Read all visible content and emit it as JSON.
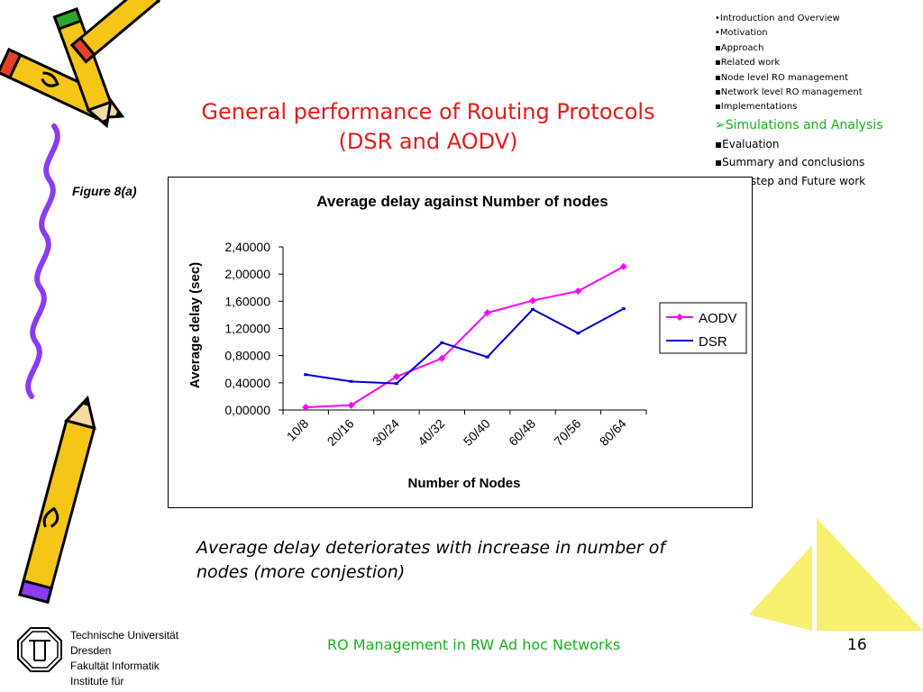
{
  "nav": {
    "items": [
      {
        "label": "•Introduction and Overview",
        "style": "small"
      },
      {
        "label": "•Motivation",
        "style": "small"
      },
      {
        "label": "▪Approach",
        "style": "small"
      },
      {
        "label": "▪Related work",
        "style": "small"
      },
      {
        "label": "▪Node level RO management",
        "style": "small"
      },
      {
        "label": "▪Network level RO management",
        "style": "small"
      },
      {
        "label": "▪Implementations",
        "style": "small"
      },
      {
        "label": "➢Simulations and Analysis",
        "style": "current"
      },
      {
        "label": "▪Evaluation",
        "style": "big"
      },
      {
        "label": "▪Summary and conclusions",
        "style": "big"
      },
      {
        "label": "▪Next step and Future work",
        "style": "big"
      }
    ]
  },
  "slide": {
    "title_line1": "General performance of Routing Protocols",
    "title_line2": "(DSR and  AODV)",
    "figure_label": "Figure 8(a)",
    "caption_line1": "Average delay deteriorates with increase in number of",
    "caption_line2": "nodes (more conjestion)"
  },
  "footer": {
    "title": "RO Management in RW Ad hoc Networks",
    "page_number": "16",
    "institution": [
      "Technische Universität",
      "Dresden",
      "Fakultät Informatik",
      "Institute für"
    ]
  },
  "colors": {
    "title": "#e51a1a",
    "accent_green": "#16b01c",
    "aodv": "#ff00ff",
    "dsr": "#0000c8",
    "sail": "#f7ef6e",
    "pencil_yellow": "#f5c518",
    "pencil_purple": "#8a3cf0"
  },
  "chart_data": {
    "type": "line",
    "title": "Average delay against Number of nodes",
    "xlabel": "Number of Nodes",
    "ylabel": "Average delay (sec)",
    "categories": [
      "10/8",
      "20/16",
      "30/24",
      "40/32",
      "50/40",
      "60/48",
      "70/56",
      "80/64"
    ],
    "ylim": [
      0,
      2.4
    ],
    "yticks": [
      "0,00000",
      "0,40000",
      "0,80000",
      "1,20000",
      "1,60000",
      "2,00000",
      "2,40000"
    ],
    "grid": false,
    "legend_position": "right",
    "series": [
      {
        "name": "AODV",
        "values": [
          0.04,
          0.07,
          0.49,
          0.76,
          1.43,
          1.61,
          1.75,
          2.11
        ]
      },
      {
        "name": "DSR",
        "values": [
          0.52,
          0.42,
          0.39,
          0.99,
          0.78,
          1.48,
          1.13,
          1.49
        ]
      }
    ]
  }
}
